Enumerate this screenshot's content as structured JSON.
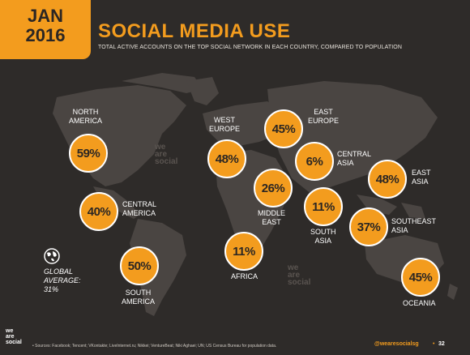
{
  "header": {
    "badge_month": "JAN",
    "badge_year": "2016",
    "title": "SOCIAL MEDIA USE",
    "subtitle": "TOTAL ACTIVE ACCOUNTS ON THE TOP SOCIAL NETWORK IN EACH COUNTRY, COMPARED TO POPULATION"
  },
  "colors": {
    "accent": "#f39c1e",
    "background": "#2e2b29",
    "land": "#4a4542"
  },
  "regions": [
    {
      "name": "NORTH\nAMERICA",
      "value": "59%"
    },
    {
      "name": "CENTRAL\nAMERICA",
      "value": "40%"
    },
    {
      "name": "SOUTH\nAMERICA",
      "value": "50%"
    },
    {
      "name": "WEST\nEUROPE",
      "value": "48%"
    },
    {
      "name": "EAST\nEUROPE",
      "value": "45%"
    },
    {
      "name": "CENTRAL\nASIA",
      "value": "6%"
    },
    {
      "name": "MIDDLE\nEAST",
      "value": "26%"
    },
    {
      "name": "AFRICA",
      "value": "11%"
    },
    {
      "name": "SOUTH\nASIA",
      "value": "11%"
    },
    {
      "name": "EAST\nASIA",
      "value": "48%"
    },
    {
      "name": "SOUTHEAST\nASIA",
      "value": "37%"
    },
    {
      "name": "OCEANIA",
      "value": "45%"
    }
  ],
  "global": {
    "icon": "globe-icon",
    "text": "GLOBAL\nAVERAGE:\n31%"
  },
  "watermark": "we\nare\nsocial",
  "footer": {
    "logo": "we\nare\nsocial",
    "sources": "• Sources: Facebook; Tencent; VKontakte; LiveInternet.ru; Nikkei; VentureBeat; Niki Aghaei; UN; US Census Bureau for population data.",
    "handle": "@wearesocialsg",
    "separator": "•",
    "page": "32"
  }
}
